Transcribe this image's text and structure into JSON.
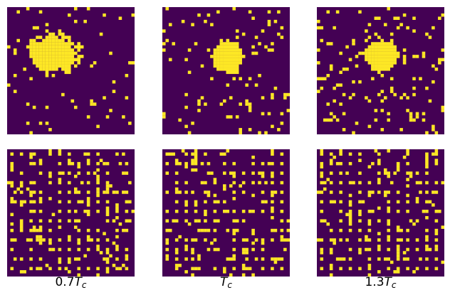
{
  "colors": {
    "background": "#440154",
    "spin": "#fde725"
  },
  "grid_size": 40,
  "rows": [
    {
      "row": "top",
      "seed_blob": true
    },
    {
      "row": "bottom",
      "seed_blob": false
    }
  ],
  "columns": [
    {
      "caption_prefix": "0.7",
      "caption_var": "T",
      "caption_sub": "c",
      "density_top": 0.04,
      "density_bottom": 0.15
    },
    {
      "caption_prefix": "",
      "caption_var": "T",
      "caption_sub": "c",
      "density_top": 0.06,
      "density_bottom": 0.17
    },
    {
      "caption_prefix": "1.3",
      "caption_var": "T",
      "caption_sub": "c",
      "density_top": 0.09,
      "density_bottom": 0.16
    }
  ]
}
